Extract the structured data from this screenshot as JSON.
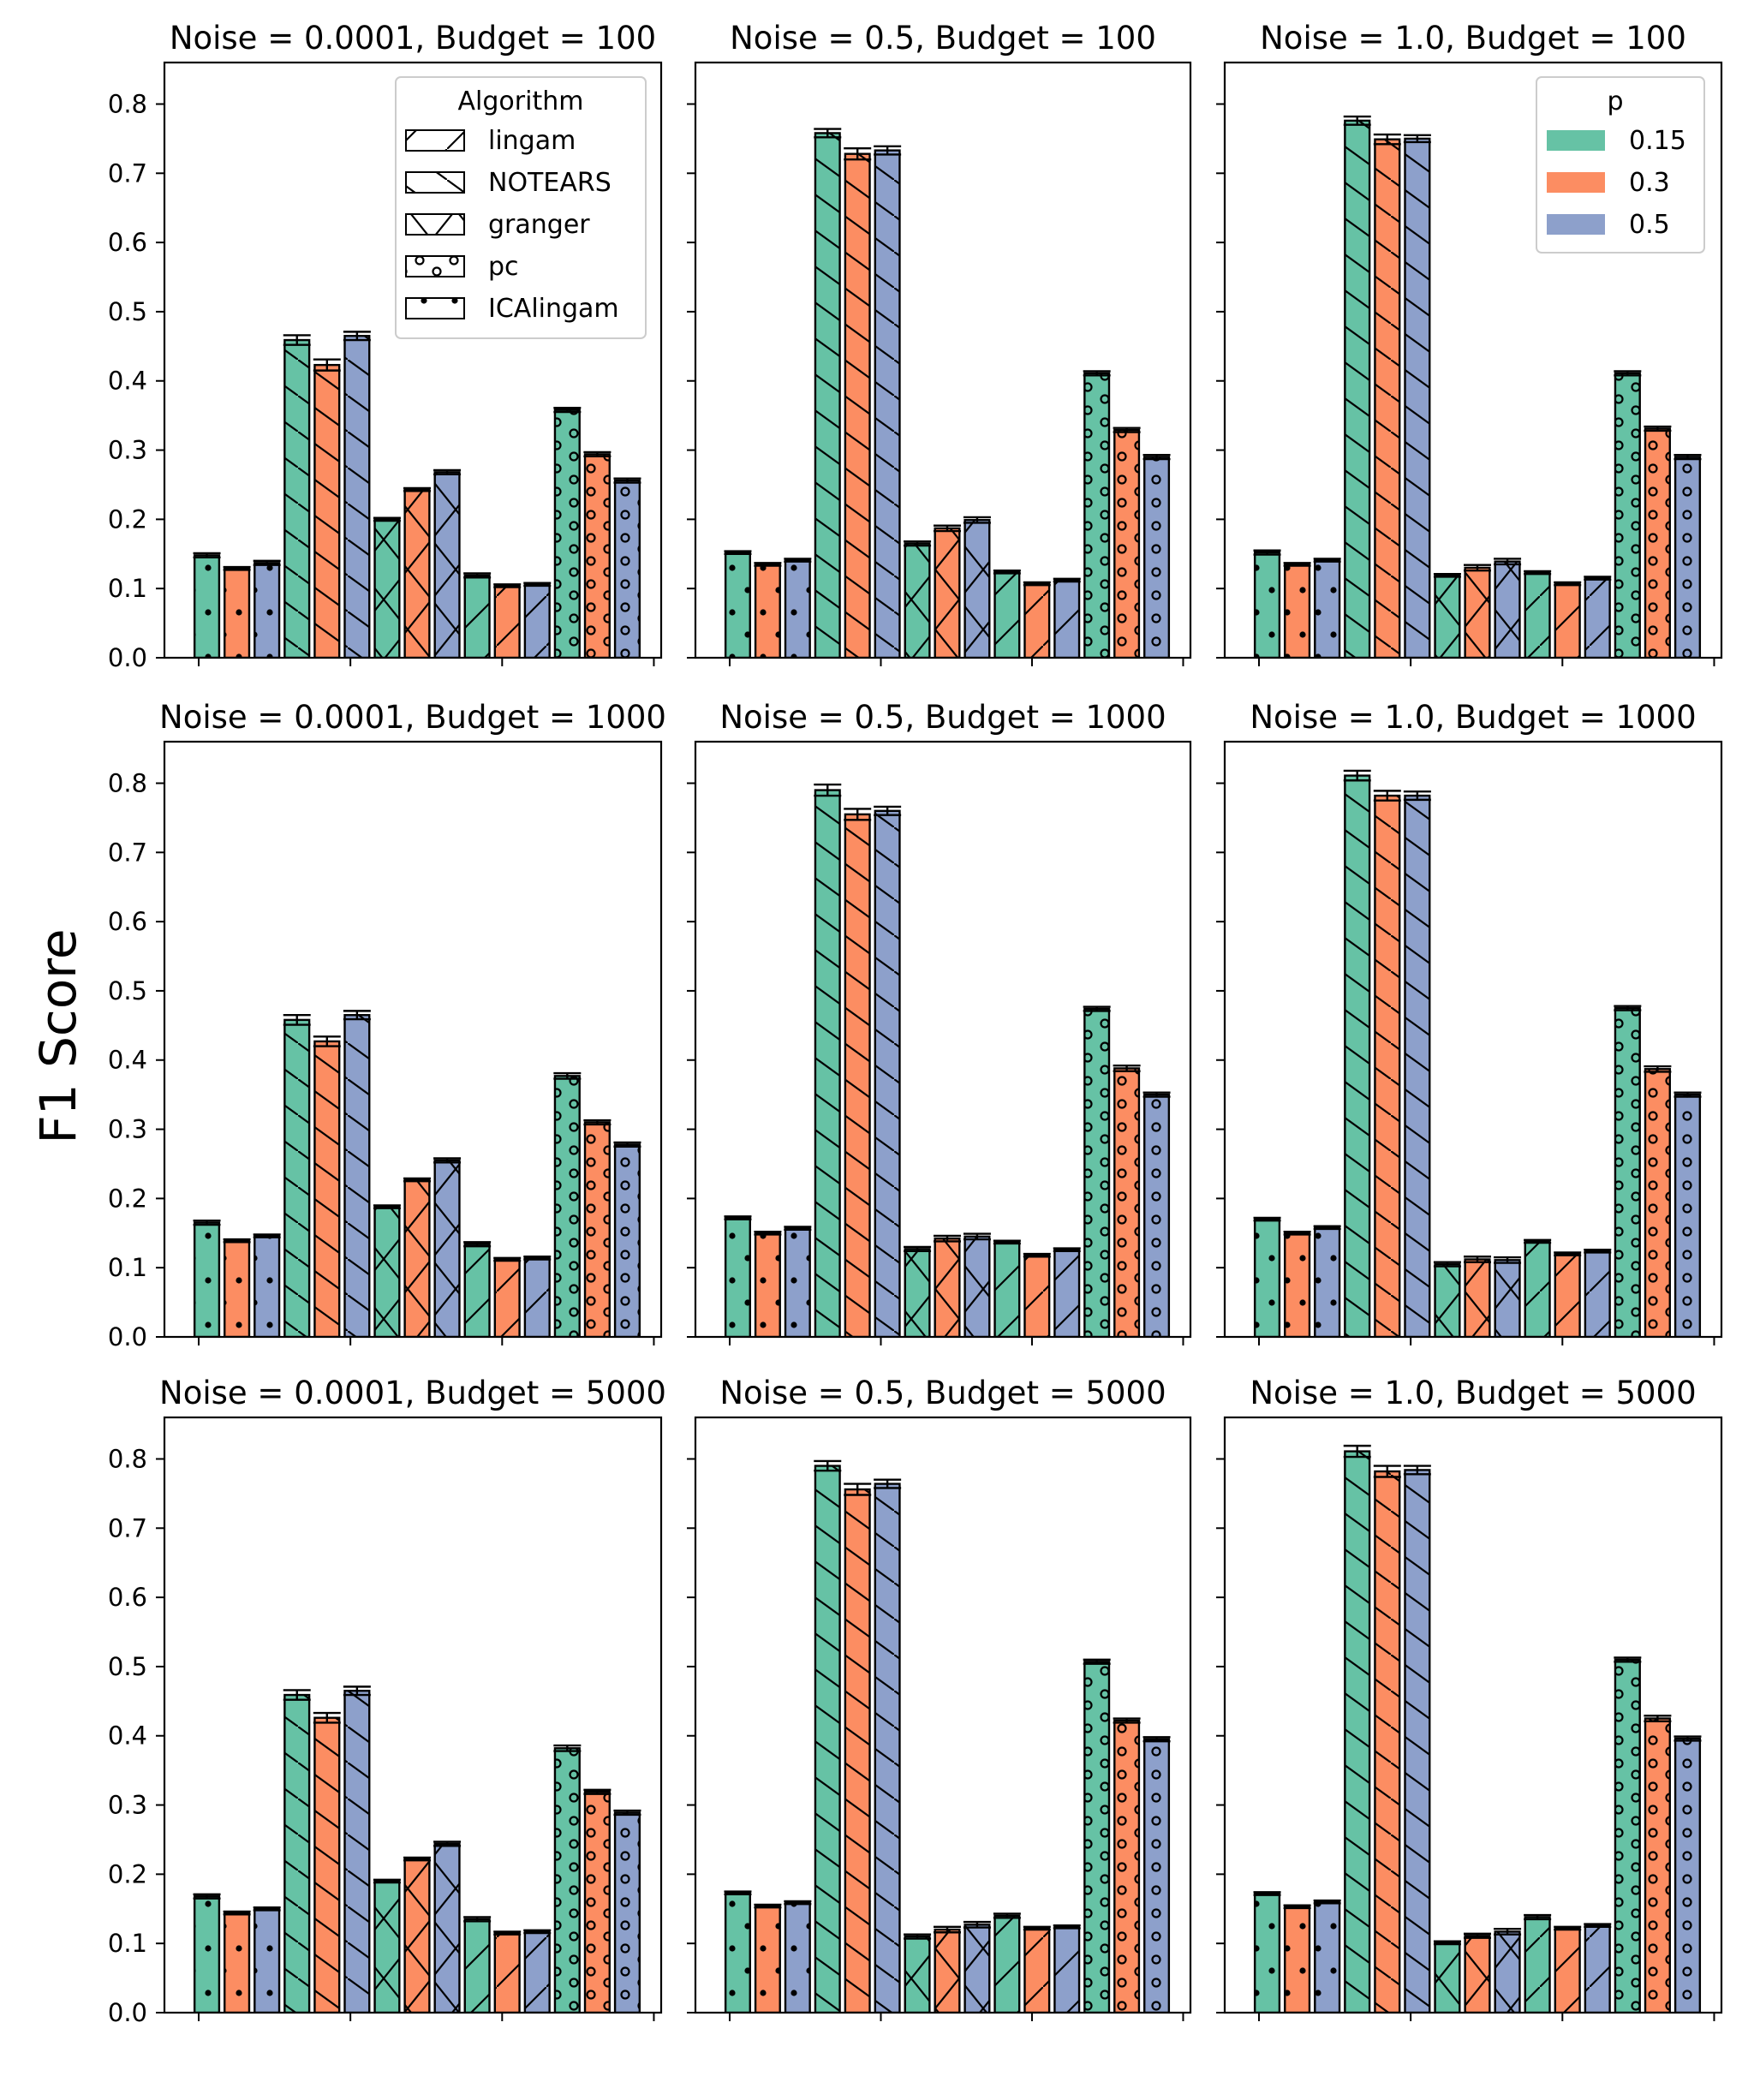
{
  "chart_data": {
    "type": "bar",
    "ylabel": "F1 Score",
    "ylim": [
      0,
      0.86
    ],
    "yticks": [
      "0.0",
      "0.1",
      "0.2",
      "0.3",
      "0.4",
      "0.5",
      "0.6",
      "0.7",
      "0.8"
    ],
    "grid": false,
    "algorithms": [
      "ICAlingam",
      "NOTEARS",
      "granger",
      "lingam",
      "pc"
    ],
    "algorithm_hatches": {
      "lingam": "/",
      "NOTEARS": "\\",
      "granger": "x",
      "pc": "o",
      "ICAlingam": "."
    },
    "p_values": [
      "0.15",
      "0.3",
      "0.5"
    ],
    "p_colors": [
      "#66c2a5",
      "#fc8d62",
      "#8da0cb"
    ],
    "legends": {
      "algorithm": {
        "title": "Algorithm",
        "placement": "top-right of first panel",
        "entries": [
          "lingam",
          "NOTEARS",
          "granger",
          "pc",
          "ICAlingam"
        ]
      },
      "p": {
        "title": "p",
        "placement": "top-right of third panel",
        "entries": [
          "0.15",
          "0.3",
          "0.5"
        ]
      }
    },
    "panels": [
      {
        "title": "Noise = 0.0001, Budget = 100",
        "noise": 0.0001,
        "budget": 100,
        "values": [
          [
            0.148,
            0.129,
            0.137
          ],
          [
            0.459,
            0.423,
            0.465
          ],
          [
            0.2,
            0.243,
            0.268
          ],
          [
            0.119,
            0.104,
            0.106
          ],
          [
            0.358,
            0.294,
            0.256
          ]
        ],
        "errors": [
          [
            0.003,
            0.002,
            0.003
          ],
          [
            0.007,
            0.008,
            0.006
          ],
          [
            0.002,
            0.002,
            0.003
          ],
          [
            0.003,
            0.002,
            0.002
          ],
          [
            0.003,
            0.003,
            0.003
          ]
        ]
      },
      {
        "title": "Noise = 0.5, Budget = 100",
        "noise": 0.5,
        "budget": 100,
        "values": [
          [
            0.152,
            0.135,
            0.141
          ],
          [
            0.758,
            0.728,
            0.733
          ],
          [
            0.165,
            0.187,
            0.199
          ],
          [
            0.124,
            0.107,
            0.112
          ],
          [
            0.411,
            0.329,
            0.29
          ]
        ],
        "errors": [
          [
            0.002,
            0.002,
            0.002
          ],
          [
            0.006,
            0.008,
            0.006
          ],
          [
            0.003,
            0.004,
            0.004
          ],
          [
            0.002,
            0.002,
            0.002
          ],
          [
            0.003,
            0.003,
            0.003
          ]
        ]
      },
      {
        "title": "Noise = 1.0, Budget = 100",
        "noise": 1.0,
        "budget": 100,
        "values": [
          [
            0.152,
            0.135,
            0.141
          ],
          [
            0.776,
            0.749,
            0.75
          ],
          [
            0.119,
            0.13,
            0.139
          ],
          [
            0.123,
            0.107,
            0.115
          ],
          [
            0.411,
            0.331,
            0.29
          ]
        ],
        "errors": [
          [
            0.003,
            0.002,
            0.002
          ],
          [
            0.006,
            0.007,
            0.005
          ],
          [
            0.002,
            0.004,
            0.004
          ],
          [
            0.002,
            0.002,
            0.002
          ],
          [
            0.003,
            0.003,
            0.003
          ]
        ]
      },
      {
        "title": "Noise = 0.0001, Budget = 1000",
        "noise": 0.0001,
        "budget": 1000,
        "values": [
          [
            0.165,
            0.139,
            0.146
          ],
          [
            0.458,
            0.427,
            0.465
          ],
          [
            0.188,
            0.227,
            0.255
          ],
          [
            0.134,
            0.112,
            0.114
          ],
          [
            0.377,
            0.31,
            0.278
          ]
        ],
        "errors": [
          [
            0.003,
            0.002,
            0.002
          ],
          [
            0.007,
            0.007,
            0.006
          ],
          [
            0.002,
            0.002,
            0.003
          ],
          [
            0.003,
            0.002,
            0.002
          ],
          [
            0.004,
            0.003,
            0.003
          ]
        ]
      },
      {
        "title": "Noise = 0.5, Budget = 1000",
        "noise": 0.5,
        "budget": 1000,
        "values": [
          [
            0.172,
            0.15,
            0.157
          ],
          [
            0.79,
            0.755,
            0.76
          ],
          [
            0.127,
            0.142,
            0.145
          ],
          [
            0.137,
            0.118,
            0.126
          ],
          [
            0.474,
            0.388,
            0.35
          ]
        ],
        "errors": [
          [
            0.002,
            0.002,
            0.002
          ],
          [
            0.008,
            0.008,
            0.006
          ],
          [
            0.003,
            0.004,
            0.004
          ],
          [
            0.002,
            0.002,
            0.002
          ],
          [
            0.003,
            0.004,
            0.003
          ]
        ]
      },
      {
        "title": "Noise = 1.0, Budget = 1000",
        "noise": 1.0,
        "budget": 1000,
        "values": [
          [
            0.17,
            0.15,
            0.158
          ],
          [
            0.811,
            0.782,
            0.782
          ],
          [
            0.105,
            0.112,
            0.111
          ],
          [
            0.138,
            0.12,
            0.124
          ],
          [
            0.475,
            0.387,
            0.35
          ]
        ],
        "errors": [
          [
            0.002,
            0.002,
            0.002
          ],
          [
            0.007,
            0.007,
            0.006
          ],
          [
            0.003,
            0.004,
            0.004
          ],
          [
            0.002,
            0.002,
            0.002
          ],
          [
            0.003,
            0.004,
            0.003
          ]
        ]
      },
      {
        "title": "Noise = 0.0001, Budget = 5000",
        "noise": 0.0001,
        "budget": 5000,
        "values": [
          [
            0.168,
            0.144,
            0.15
          ],
          [
            0.459,
            0.426,
            0.465
          ],
          [
            0.19,
            0.222,
            0.244
          ],
          [
            0.135,
            0.115,
            0.117
          ],
          [
            0.382,
            0.319,
            0.289
          ]
        ],
        "errors": [
          [
            0.003,
            0.002,
            0.002
          ],
          [
            0.007,
            0.007,
            0.006
          ],
          [
            0.002,
            0.002,
            0.003
          ],
          [
            0.003,
            0.002,
            0.002
          ],
          [
            0.004,
            0.003,
            0.003
          ]
        ]
      },
      {
        "title": "Noise = 0.5, Budget = 5000",
        "noise": 0.5,
        "budget": 5000,
        "values": [
          [
            0.173,
            0.154,
            0.159
          ],
          [
            0.79,
            0.756,
            0.764
          ],
          [
            0.11,
            0.12,
            0.127
          ],
          [
            0.14,
            0.122,
            0.124
          ],
          [
            0.507,
            0.422,
            0.395
          ]
        ],
        "errors": [
          [
            0.002,
            0.002,
            0.002
          ],
          [
            0.007,
            0.008,
            0.006
          ],
          [
            0.003,
            0.004,
            0.004
          ],
          [
            0.003,
            0.002,
            0.002
          ],
          [
            0.003,
            0.003,
            0.003
          ]
        ]
      },
      {
        "title": "Noise = 1.0, Budget = 5000",
        "noise": 1.0,
        "budget": 5000,
        "values": [
          [
            0.172,
            0.153,
            0.16
          ],
          [
            0.811,
            0.782,
            0.784
          ],
          [
            0.101,
            0.111,
            0.117
          ],
          [
            0.138,
            0.122,
            0.126
          ],
          [
            0.51,
            0.425,
            0.396
          ]
        ],
        "errors": [
          [
            0.002,
            0.002,
            0.002
          ],
          [
            0.008,
            0.008,
            0.006
          ],
          [
            0.002,
            0.003,
            0.004
          ],
          [
            0.003,
            0.002,
            0.002
          ],
          [
            0.003,
            0.004,
            0.003
          ]
        ]
      }
    ]
  }
}
